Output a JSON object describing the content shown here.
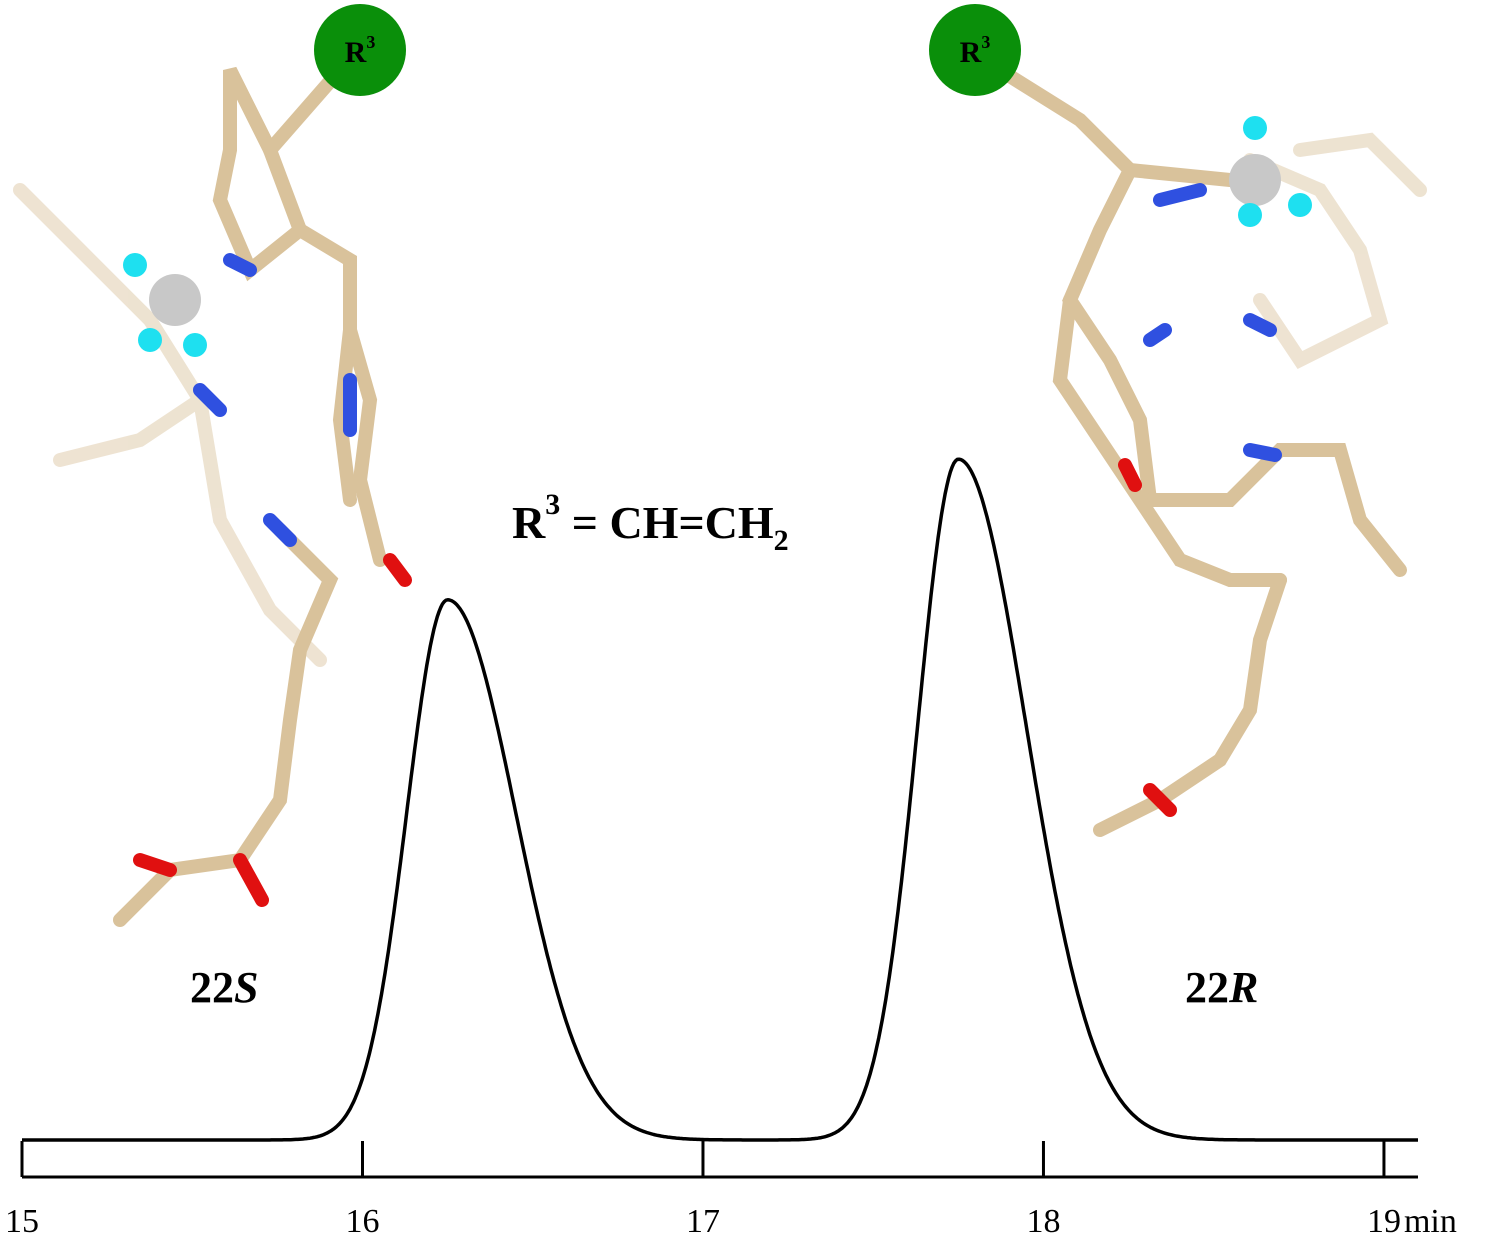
{
  "chart_data": {
    "type": "line",
    "title": "",
    "xlabel": "",
    "ylabel": "",
    "x_unit": "min",
    "xlim": [
      15,
      19.1
    ],
    "ylim": [
      0,
      1
    ],
    "x_ticks": [
      15,
      16,
      17,
      18,
      19
    ],
    "x_tick_labels": [
      "15",
      "16",
      "17",
      "18",
      "19"
    ],
    "grid": false,
    "legend": "none",
    "line_color": "#000000",
    "peaks": [
      {
        "label_prefix": "22",
        "label_suffix": "S",
        "retention_time": 16.25,
        "relative_height": 0.73
      },
      {
        "label_prefix": "22",
        "label_suffix": "R",
        "retention_time": 17.75,
        "relative_height": 0.92
      }
    ],
    "baseline_level": 0.0,
    "substituent": {
      "badge_main": "R",
      "badge_sup": "3",
      "formula_r": "R",
      "formula_sup": "3",
      "formula_mid": " = CH=CH",
      "formula_sub": "2"
    }
  },
  "colors": {
    "badge_fill": "#0a8f0a",
    "carbon": "#d9c29b",
    "nitrogen": "#2f50e0",
    "oxygen": "#e01010",
    "hydrogen": "#f2f2f2",
    "fluorine": "#1ee0f0",
    "boron": "#c8c8c8"
  }
}
